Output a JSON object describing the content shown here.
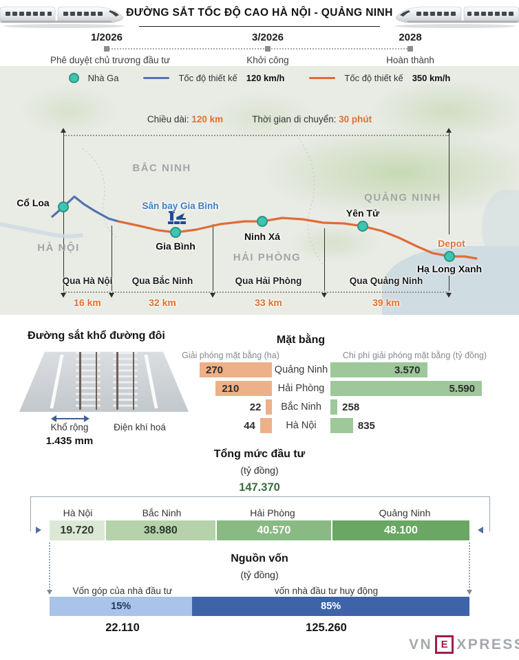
{
  "colors": {
    "orange_route": "#e06b38",
    "blue_route": "#5272b0",
    "station_teal": "#3fc4b0",
    "accent_orange": "#e0702e",
    "bar_orange": "#edb088",
    "bar_green": "#9ec79a",
    "fund_light_blue": "#a9c3ea",
    "fund_dark_blue": "#3d64a8",
    "brand_crimson": "#a01c4a"
  },
  "header": {
    "title": "ĐƯỜNG SẮT TỐC ĐỘ CAO HÀ NỘI - QUẢNG NINH"
  },
  "timeline": {
    "milestones": [
      {
        "date": "1/2026",
        "label": "Phê duyệt chủ trương đầu tư"
      },
      {
        "date": "3/2026",
        "label": "Khởi công"
      },
      {
        "date": "2028",
        "label": "Hoàn thành"
      }
    ]
  },
  "legend": {
    "station": "Nhà Ga",
    "design_speed_prefix_1": "Tốc độ thiết kế",
    "speed_1": "120 km/h",
    "design_speed_prefix_2": "Tốc độ thiết kế",
    "speed_2": "350 km/h"
  },
  "route_info": {
    "length_label": "Chiều dài:",
    "length_value": "120 km",
    "time_label": "Thời gian di chuyển:",
    "time_value": "30 phút"
  },
  "map": {
    "regions": {
      "hanoi": "HÀ NỘI",
      "bacninh": "BẮC NINH",
      "haiphong": "HẢI PHÒNG",
      "quangninh": "QUẢNG NINH"
    },
    "stations": {
      "coloa": "Cổ Loa",
      "giabinh": "Gia Bình",
      "ninhxa": "Ninh Xá",
      "yentu": "Yên Tử",
      "halongxanh": "Hạ Long Xanh"
    },
    "airport": "Sân bay Gia Bình",
    "depot": "Depot",
    "segments": [
      {
        "label": "Qua Hà Nội",
        "km": "16 km"
      },
      {
        "label": "Qua Bắc Ninh",
        "km": "32 km"
      },
      {
        "label": "Qua Hải Phòng",
        "km": "33 km"
      },
      {
        "label": "Qua Quảng Ninh",
        "km": "39 km"
      }
    ]
  },
  "track_spec": {
    "title": "Đường sắt khổ đường đôi",
    "gauge_label": "Khổ rộng",
    "gauge_value": "1.435 mm",
    "electrified_label": "Điện khí hoá"
  },
  "matbang": {
    "title": "Mặt bằng",
    "left_header": "Giải phóng mặt bằng (ha)",
    "right_header": "Chi phí giải phóng mặt bằng (tỷ đồng)",
    "rows": [
      {
        "province": "Quảng Ninh",
        "area": "270",
        "cost": "3.570"
      },
      {
        "province": "Hải Phòng",
        "area": "210",
        "cost": "5.590"
      },
      {
        "province": "Bắc Ninh",
        "area": "22",
        "cost": "258"
      },
      {
        "province": "Hà Nội",
        "area": "44",
        "cost": "835"
      }
    ]
  },
  "investment": {
    "title": "Tổng mức đầu tư",
    "unit": "(tỷ đồng)",
    "total": "147.370",
    "segments": [
      {
        "province": "Hà Nội",
        "value": "19.720"
      },
      {
        "province": "Bắc Ninh",
        "value": "38.980"
      },
      {
        "province": "Hải Phòng",
        "value": "40.570"
      },
      {
        "province": "Quảng Ninh",
        "value": "48.100"
      }
    ]
  },
  "funding": {
    "title": "Nguồn vốn",
    "unit": "(tỷ đồng)",
    "left_label": "Vốn góp của nhà đầu tư",
    "right_label": "vốn nhà đầu tư huy động",
    "left_pct": "15%",
    "right_pct": "85%",
    "left_value": "22.110",
    "right_value": "125.260"
  },
  "footer": {
    "brand_vn": "VN",
    "brand_e": "E",
    "brand_xpress": "XPRESS"
  },
  "chart_data": [
    {
      "type": "bar",
      "title": "Mặt bằng",
      "orientation": "horizontal",
      "categories": [
        "Quảng Ninh",
        "Hải Phòng",
        "Bắc Ninh",
        "Hà Nội"
      ],
      "series": [
        {
          "name": "Giải phóng mặt bằng (ha)",
          "values": [
            270,
            210,
            22,
            44
          ],
          "color": "#edb088"
        },
        {
          "name": "Chi phí giải phóng mặt bằng (tỷ đồng)",
          "values": [
            3570,
            5590,
            258,
            835
          ],
          "color": "#9ec79a"
        }
      ],
      "value_labels": true,
      "legend_position": "top"
    },
    {
      "type": "bar",
      "title": "Tổng mức đầu tư (tỷ đồng)",
      "stacked": true,
      "categories": [
        "Hà Nội",
        "Bắc Ninh",
        "Hải Phòng",
        "Quảng Ninh"
      ],
      "values": [
        19720,
        38980,
        40570,
        48100
      ],
      "total": 147370,
      "colors": [
        "#dbe8d5",
        "#b5d2aa",
        "#8aba83",
        "#69a763"
      ]
    },
    {
      "type": "bar",
      "title": "Nguồn vốn (tỷ đồng)",
      "stacked": true,
      "categories": [
        "Vốn góp của nhà đầu tư",
        "vốn nhà đầu tư huy động"
      ],
      "percent_values": [
        15,
        85
      ],
      "values": [
        22110,
        125260
      ],
      "colors": [
        "#a9c3ea",
        "#3d64a8"
      ]
    },
    {
      "type": "line",
      "title": "Đường sắt tốc độ cao Hà Nội - Quảng Ninh",
      "stations": [
        "Cổ Loa",
        "Gia Bình",
        "Ninh Xá",
        "Yên Tử",
        "Hạ Long Xanh"
      ],
      "segment_km": [
        16,
        32,
        33,
        39
      ],
      "total_km": 120,
      "travel_time_min": 30,
      "design_speeds_kmh": [
        120,
        350
      ],
      "milestones": [
        "1/2026",
        "3/2026",
        "2028"
      ]
    }
  ]
}
